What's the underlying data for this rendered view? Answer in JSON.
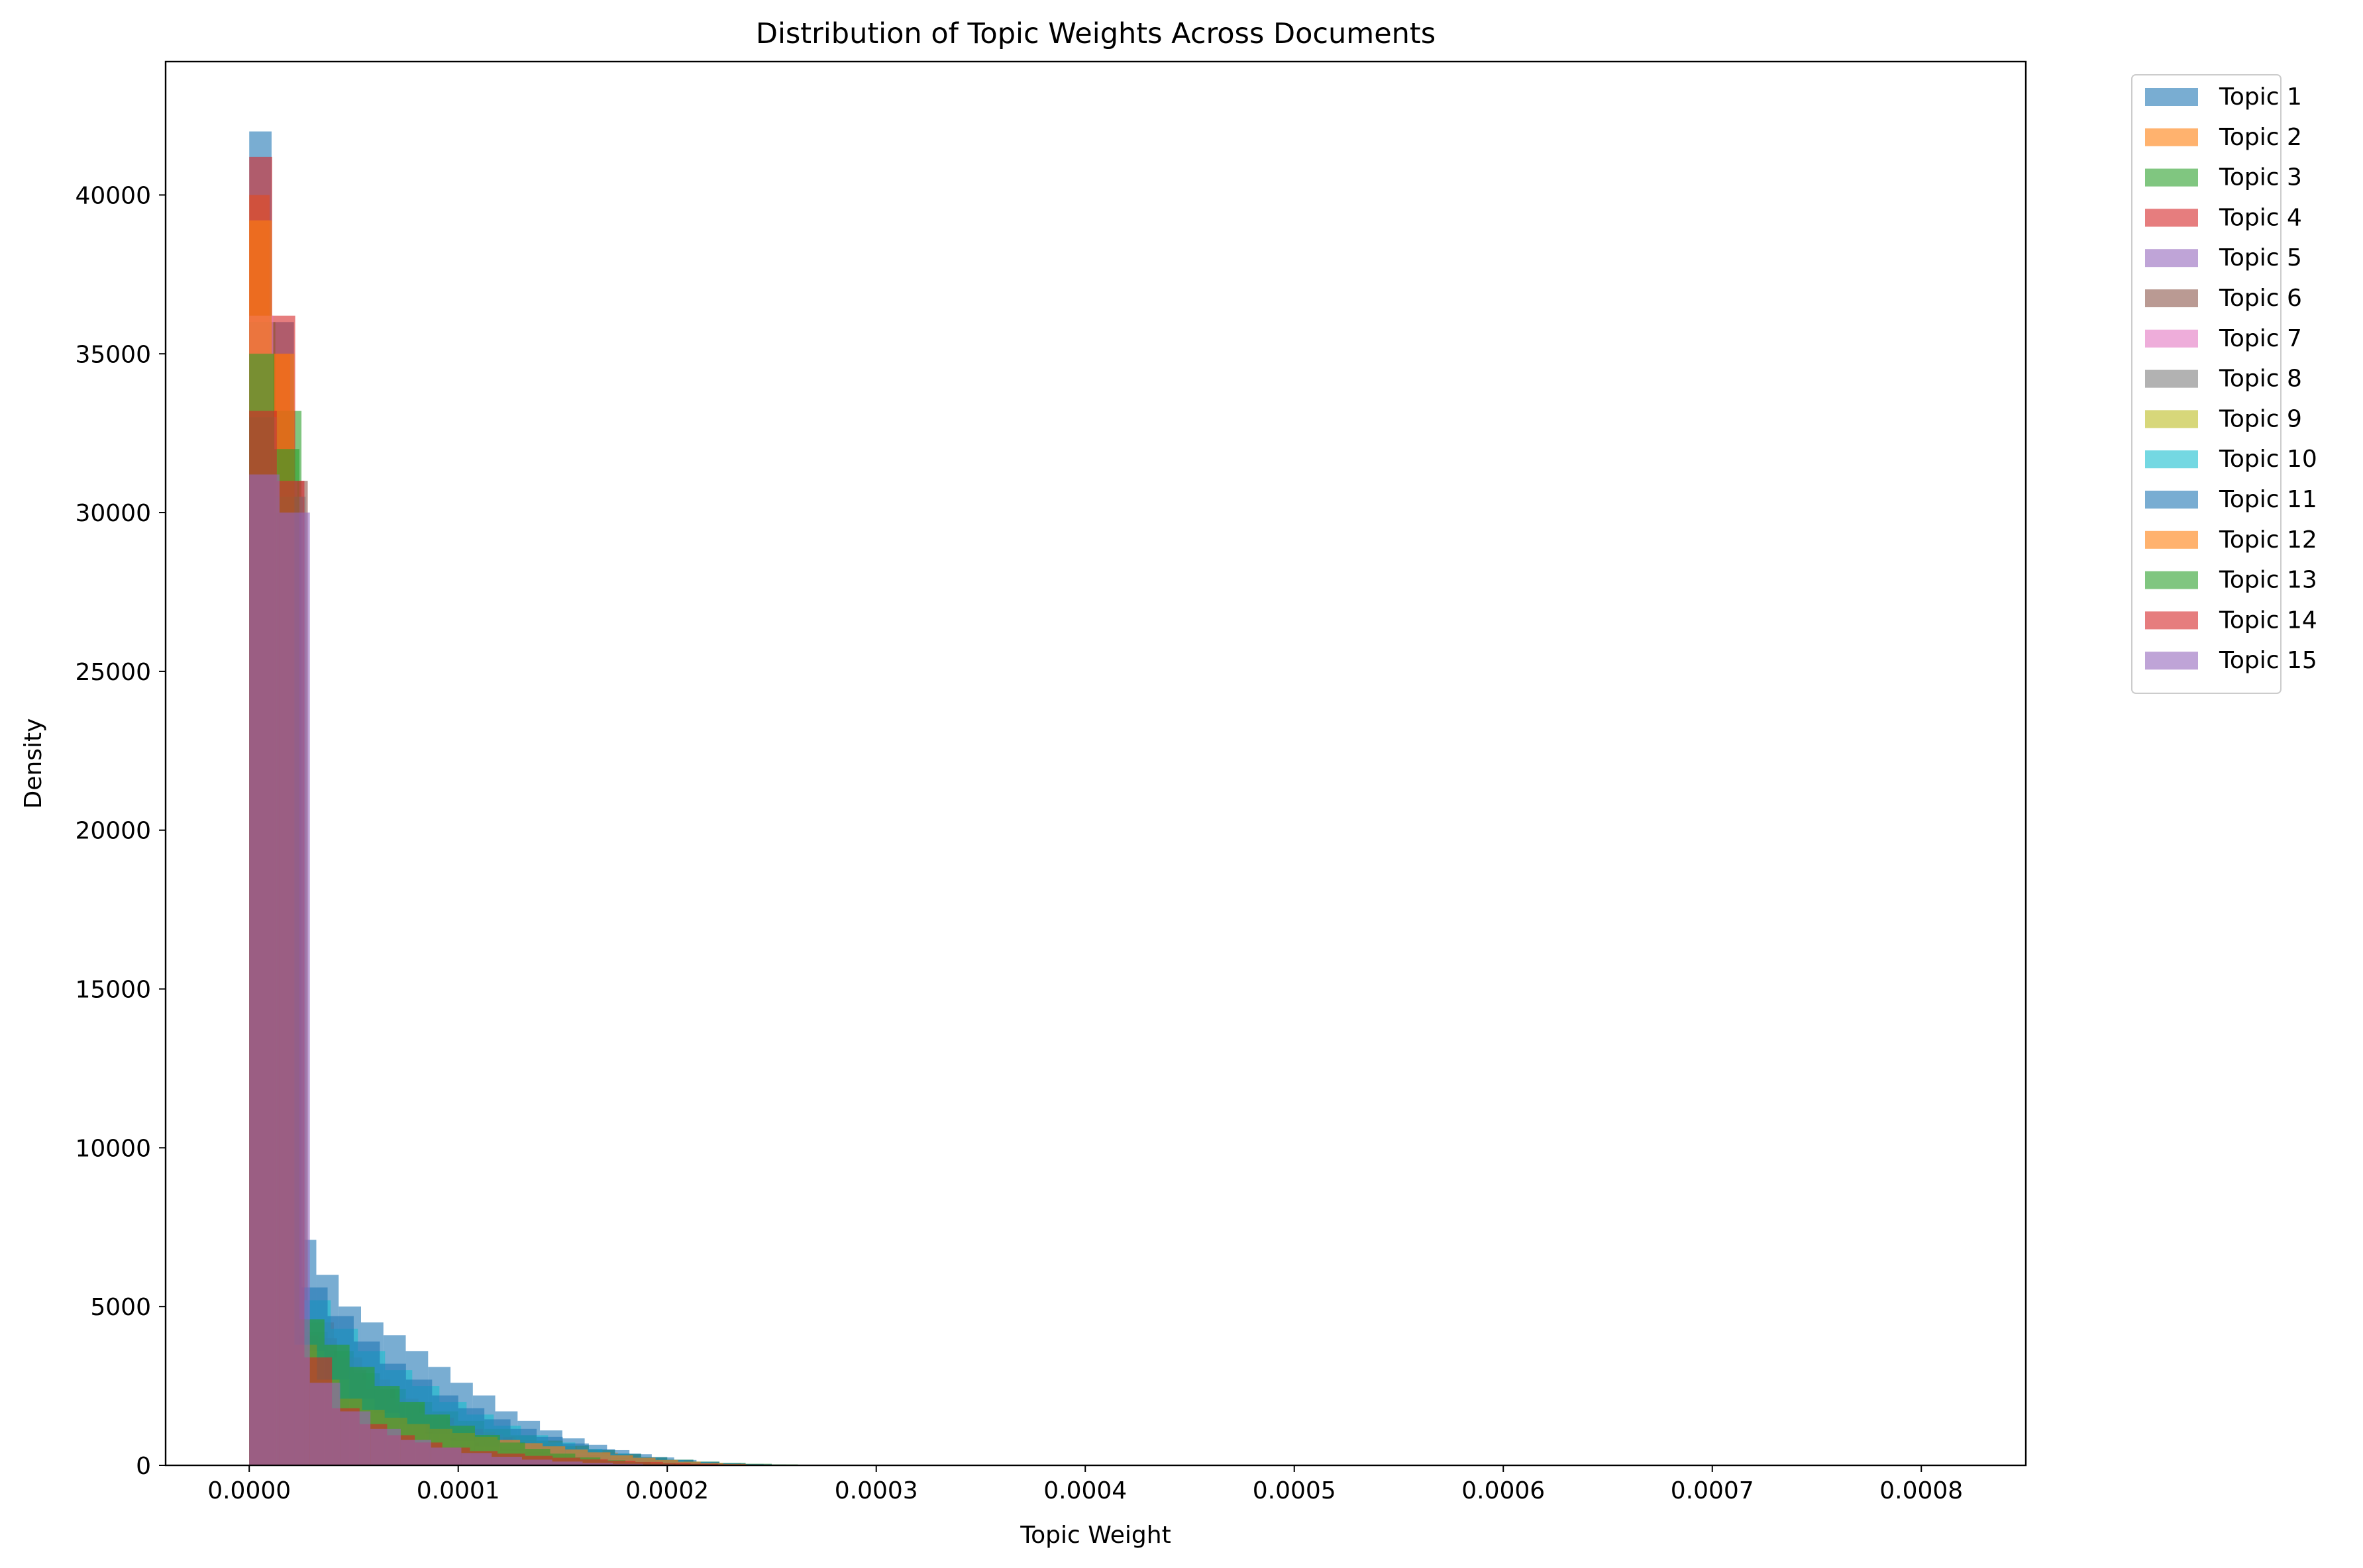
{
  "chart_data": {
    "type": "histogram",
    "title": "Distribution of Topic Weights Across Documents",
    "xlabel": "Topic Weight",
    "ylabel": "Density",
    "xlim": [
      -4e-05,
      0.00085
    ],
    "ylim": [
      0,
      44200
    ],
    "xticks": [
      0.0,
      0.0001,
      0.0002,
      0.0003,
      0.0004,
      0.0005,
      0.0006,
      0.0007,
      0.0008
    ],
    "xtick_labels": [
      "0.0000",
      "0.0001",
      "0.0002",
      "0.0003",
      "0.0004",
      "0.0005",
      "0.0006",
      "0.0007",
      "0.0008"
    ],
    "yticks": [
      0,
      5000,
      10000,
      15000,
      20000,
      25000,
      30000,
      35000,
      40000
    ],
    "ytick_labels": [
      "0",
      "5000",
      "10000",
      "15000",
      "20000",
      "25000",
      "30000",
      "35000",
      "40000"
    ],
    "grid": false,
    "legend_position": "outside-top-right",
    "bar_opacity": 0.6,
    "series": [
      {
        "name": "Topic 1",
        "color": "#1f77b4",
        "bin_width": 1.07e-05,
        "values": [
          42000,
          36000,
          7100,
          6000,
          5000,
          4500,
          4100,
          3600,
          3100,
          2600,
          2200,
          1700,
          1400,
          1100,
          850,
          650,
          480,
          350,
          250,
          170,
          110,
          70,
          45,
          25,
          15,
          8,
          4,
          2,
          1
        ]
      },
      {
        "name": "Topic 2",
        "color": "#ff7f0e",
        "bin_width": 9.8e-06,
        "values": [
          40000,
          35000,
          4200,
          2600,
          2200,
          1900,
          1700,
          1500,
          1350,
          1250,
          1150,
          1050,
          900,
          800,
          700,
          600,
          500,
          400,
          300,
          220,
          160,
          110,
          70,
          45,
          25,
          15,
          8,
          4,
          2
        ]
      },
      {
        "name": "Topic 3",
        "color": "#2ca02c",
        "bin_width": 1.25e-05,
        "values": [
          36000,
          33200,
          4200,
          3600,
          2900,
          2400,
          2000,
          1700,
          1400,
          1150,
          950,
          780,
          620,
          480,
          360,
          260,
          180,
          120,
          80,
          50,
          30,
          18,
          10,
          5,
          2
        ]
      },
      {
        "name": "Topic 4",
        "color": "#d62728",
        "bin_width": 1.1e-05,
        "values": [
          41200,
          36200,
          4100,
          2600,
          2000,
          1700,
          1300,
          1050,
          880,
          720,
          600,
          500,
          420,
          350,
          290,
          230,
          180,
          140,
          100,
          70,
          45,
          28,
          16,
          8,
          4,
          2
        ]
      },
      {
        "name": "Topic 5",
        "color": "#9467bd",
        "bin_width": 1.2e-05,
        "values": [
          31000,
          30000,
          3000,
          1800,
          1200,
          900,
          650,
          480,
          360,
          270,
          200,
          150,
          110,
          80,
          55,
          35,
          20,
          10,
          5,
          2
        ]
      },
      {
        "name": "Topic 6",
        "color": "#8c564b",
        "bin_width": 1.4e-05,
        "values": [
          33000,
          31000,
          4000,
          3000,
          2400,
          1900,
          1500,
          1150,
          880,
          650,
          480,
          340,
          230,
          150,
          95,
          55,
          30,
          15,
          7,
          3
        ]
      },
      {
        "name": "Topic 7",
        "color": "#e377c2",
        "bin_width": 1.15e-05,
        "values": [
          36200,
          31000,
          2000,
          1400,
          1000,
          760,
          560,
          420,
          310,
          230,
          170,
          120,
          85,
          60,
          40,
          25,
          15,
          8,
          4,
          2
        ]
      },
      {
        "name": "Topic 8",
        "color": "#7f7f7f",
        "bin_width": 1.35e-05,
        "values": [
          32000,
          30500,
          4500,
          3400,
          2700,
          2100,
          1650,
          1280,
          980,
          740,
          550,
          400,
          280,
          190,
          120,
          75,
          45,
          25,
          12,
          5
        ]
      },
      {
        "name": "Topic 9",
        "color": "#bcbd22",
        "bin_width": 1.2e-05,
        "values": [
          33000,
          30000,
          3600,
          2700,
          2100,
          1650,
          1300,
          1000,
          780,
          600,
          460,
          340,
          250,
          180,
          120,
          80,
          50,
          28,
          14,
          6
        ]
      },
      {
        "name": "Topic 10",
        "color": "#17becf",
        "bin_width": 1.3e-05,
        "values": [
          33000,
          30500,
          5200,
          4300,
          3600,
          3000,
          2500,
          2000,
          1600,
          1250,
          950,
          720,
          520,
          370,
          250,
          160,
          100,
          60,
          32,
          15,
          6
        ]
      },
      {
        "name": "Topic 11",
        "color": "#1f77b4",
        "bin_width": 1.25e-05,
        "values": [
          33000,
          30000,
          5600,
          4700,
          3900,
          3200,
          2700,
          2200,
          1800,
          1450,
          1150,
          900,
          690,
          510,
          370,
          260,
          175,
          110,
          65,
          35,
          18,
          8
        ]
      },
      {
        "name": "Topic 12",
        "color": "#ff7f0e",
        "bin_width": 1.08e-05,
        "values": [
          39200,
          35000,
          3800,
          2700,
          2100,
          1750,
          1500,
          1300,
          1150,
          1020,
          900,
          800,
          700,
          600,
          500,
          410,
          320,
          240,
          170,
          115,
          75,
          45,
          25,
          12,
          5,
          2
        ]
      },
      {
        "name": "Topic 13",
        "color": "#2ca02c",
        "bin_width": 1.2e-05,
        "values": [
          35000,
          32000,
          4600,
          3800,
          3100,
          2500,
          2000,
          1600,
          1250,
          960,
          720,
          520,
          370,
          250,
          160,
          100,
          60,
          32,
          16,
          7,
          3
        ]
      },
      {
        "name": "Topic 14",
        "color": "#d62728",
        "bin_width": 1.32e-05,
        "values": [
          33200,
          31000,
          3400,
          1800,
          1300,
          950,
          720,
          560,
          450,
          370,
          300,
          240,
          190,
          145,
          105,
          72,
          48,
          30,
          17,
          9,
          4
        ]
      },
      {
        "name": "Topic 15",
        "color": "#9467bd",
        "bin_width": 1.45e-05,
        "values": [
          31200,
          30000,
          2600,
          1700,
          1150,
          800,
          560,
          390,
          270,
          180,
          120,
          78,
          48,
          28,
          15,
          7,
          3
        ]
      }
    ]
  }
}
